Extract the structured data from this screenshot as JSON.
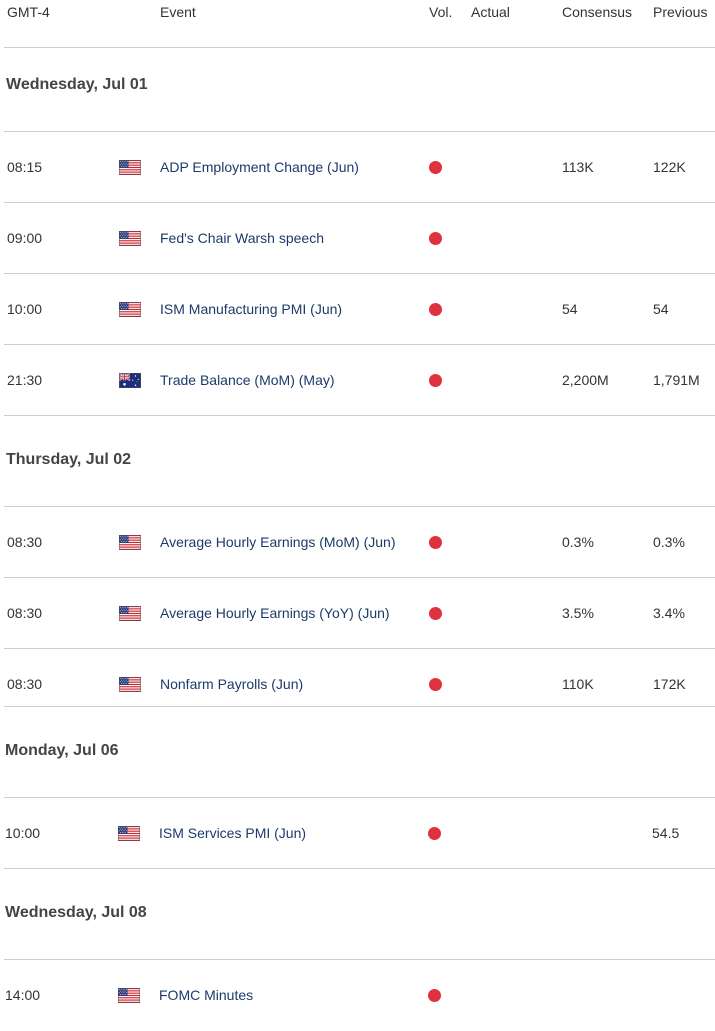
{
  "header": {
    "timezone": "GMT-4",
    "event": "Event",
    "vol": "Vol.",
    "actual": "Actual",
    "consensus": "Consensus",
    "previous": "Previous"
  },
  "colors": {
    "volatility_high": "#e0313f",
    "event_link": "#1d3a6b"
  },
  "days": [
    {
      "label": "Wednesday, Jul 01"
    },
    {
      "label": "Thursday, Jul 02"
    },
    {
      "label": "Monday, Jul 06"
    },
    {
      "label": "Wednesday, Jul 08"
    }
  ],
  "events": [
    {
      "time": "08:15",
      "flag": "us-flag-icon",
      "name": "ADP Employment Change (Jun)",
      "consensus": "113K",
      "previous": "122K"
    },
    {
      "time": "09:00",
      "flag": "us-flag-icon",
      "name": "Fed's Chair Warsh speech",
      "consensus": "",
      "previous": ""
    },
    {
      "time": "10:00",
      "flag": "us-flag-icon",
      "name": "ISM Manufacturing PMI (Jun)",
      "consensus": "54",
      "previous": "54"
    },
    {
      "time": "21:30",
      "flag": "australia-flag-icon",
      "name": "Trade Balance (MoM) (May)",
      "consensus": "2,200M",
      "previous": "1,791M"
    },
    {
      "time": "08:30",
      "flag": "us-flag-icon",
      "name": "Average Hourly Earnings (MoM) (Jun)",
      "consensus": "0.3%",
      "previous": "0.3%"
    },
    {
      "time": "08:30",
      "flag": "us-flag-icon",
      "name": "Average Hourly Earnings (YoY) (Jun)",
      "consensus": "3.5%",
      "previous": "3.4%"
    },
    {
      "time": "08:30",
      "flag": "us-flag-icon",
      "name": "Nonfarm Payrolls (Jun)",
      "consensus": "110K",
      "previous": "172K"
    },
    {
      "time": "10:00",
      "flag": "us-flag-icon",
      "name": "ISM Services PMI (Jun)",
      "consensus": "",
      "previous": "54.5"
    },
    {
      "time": "14:00",
      "flag": "us-flag-icon",
      "name": "FOMC Minutes",
      "consensus": "",
      "previous": ""
    }
  ]
}
